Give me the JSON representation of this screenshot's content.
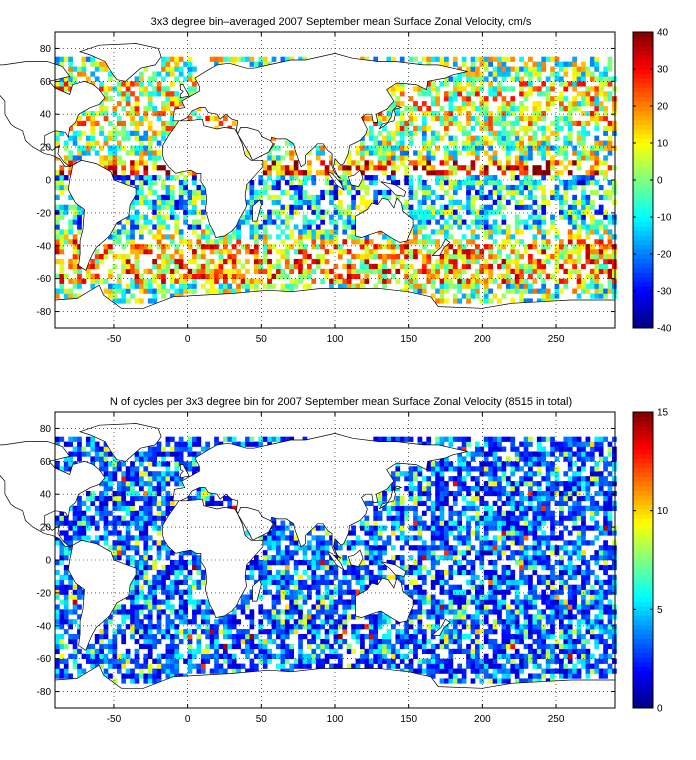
{
  "chart_data": [
    {
      "type": "heatmap",
      "title": "3x3 degree bin–averaged 2007 September mean Surface Zonal Velocity, cm/s",
      "xlabel": "",
      "ylabel": "",
      "xlim": [
        -90,
        290
      ],
      "ylim": [
        -90,
        90
      ],
      "x_ticks": [
        -50,
        0,
        50,
        100,
        150,
        200,
        250
      ],
      "y_ticks": [
        80,
        60,
        40,
        20,
        0,
        -20,
        -40,
        -60,
        -80
      ],
      "bin_size_deg": 3,
      "grid": true,
      "colorbar": {
        "min": -40,
        "max": 40,
        "ticks": [
          40,
          30,
          20,
          10,
          0,
          -10,
          -20,
          -30,
          -40
        ],
        "placement": "right"
      },
      "colormap": "jet",
      "value_range": [
        -40,
        40
      ]
    },
    {
      "type": "heatmap",
      "title": "N of cycles per 3x3 degree bin for 2007 September mean Surface Zonal Velocity (8515 in total)",
      "xlabel": "",
      "ylabel": "",
      "xlim": [
        -90,
        290
      ],
      "ylim": [
        -90,
        90
      ],
      "x_ticks": [
        -50,
        0,
        50,
        100,
        150,
        200,
        250
      ],
      "y_ticks": [
        80,
        60,
        40,
        20,
        0,
        -20,
        -40,
        -60,
        -80
      ],
      "bin_size_deg": 3,
      "grid": true,
      "colorbar": {
        "min": 0,
        "max": 15,
        "ticks": [
          15,
          10,
          5,
          0
        ],
        "placement": "right"
      },
      "colormap": "jet",
      "value_range": [
        0,
        15
      ]
    }
  ],
  "colors": {
    "frame": "#000000",
    "grid": "#000000",
    "land_fill": "#ffffff",
    "background": "#ffffff"
  }
}
